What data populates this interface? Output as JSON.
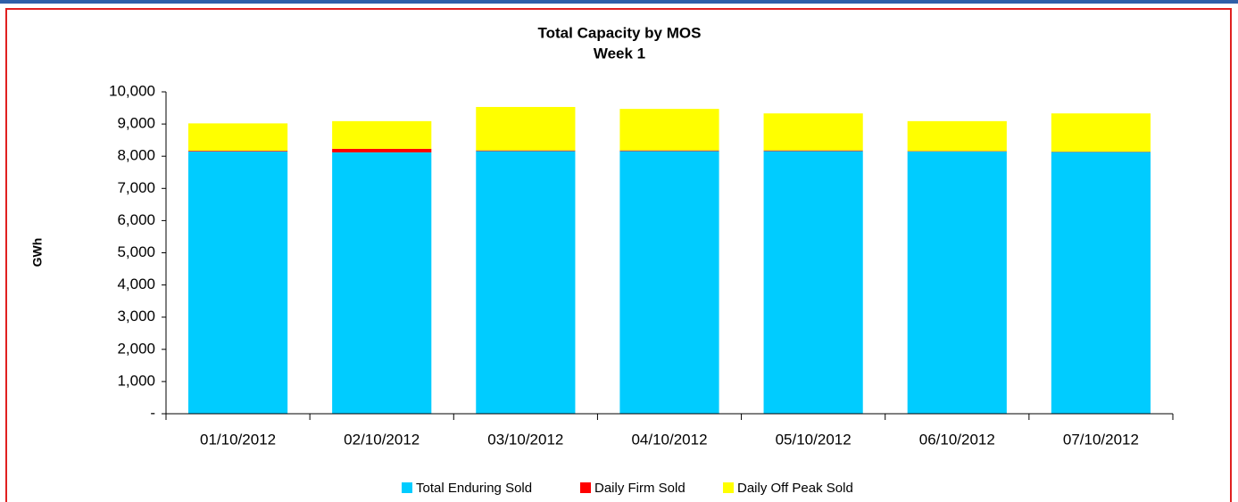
{
  "chart_data": {
    "type": "stacked_bar",
    "title": "Total Capacity by MOS",
    "subtitle": "Week 1",
    "y_label": "GWh",
    "categories": [
      "01/10/2012",
      "02/10/2012",
      "03/10/2012",
      "04/10/2012",
      "05/10/2012",
      "06/10/2012",
      "07/10/2012"
    ],
    "series": [
      {
        "name": "Total Enduring Sold",
        "color": "#00ccff",
        "values": [
          8150,
          8120,
          8160,
          8160,
          8160,
          8150,
          8130
        ]
      },
      {
        "name": "Daily Firm Sold",
        "color": "#ff0000",
        "values": [
          20,
          110,
          20,
          20,
          20,
          10,
          10
        ]
      },
      {
        "name": "Daily Off Peak Sold",
        "color": "#ffff00",
        "values": [
          850,
          860,
          1350,
          1290,
          1150,
          930,
          1190
        ]
      }
    ],
    "ylim": [
      0,
      10000
    ],
    "yticks": [
      {
        "value": 0,
        "label": "-"
      },
      {
        "value": 1000,
        "label": "1,000"
      },
      {
        "value": 2000,
        "label": "2,000"
      },
      {
        "value": 3000,
        "label": "3,000"
      },
      {
        "value": 4000,
        "label": "4,000"
      },
      {
        "value": 5000,
        "label": "5,000"
      },
      {
        "value": 6000,
        "label": "6,000"
      },
      {
        "value": 7000,
        "label": "7,000"
      },
      {
        "value": 8000,
        "label": "8,000"
      },
      {
        "value": 9000,
        "label": "9,000"
      },
      {
        "value": 10000,
        "label": "10,000"
      }
    ],
    "grid": false,
    "legend": "bottom"
  }
}
